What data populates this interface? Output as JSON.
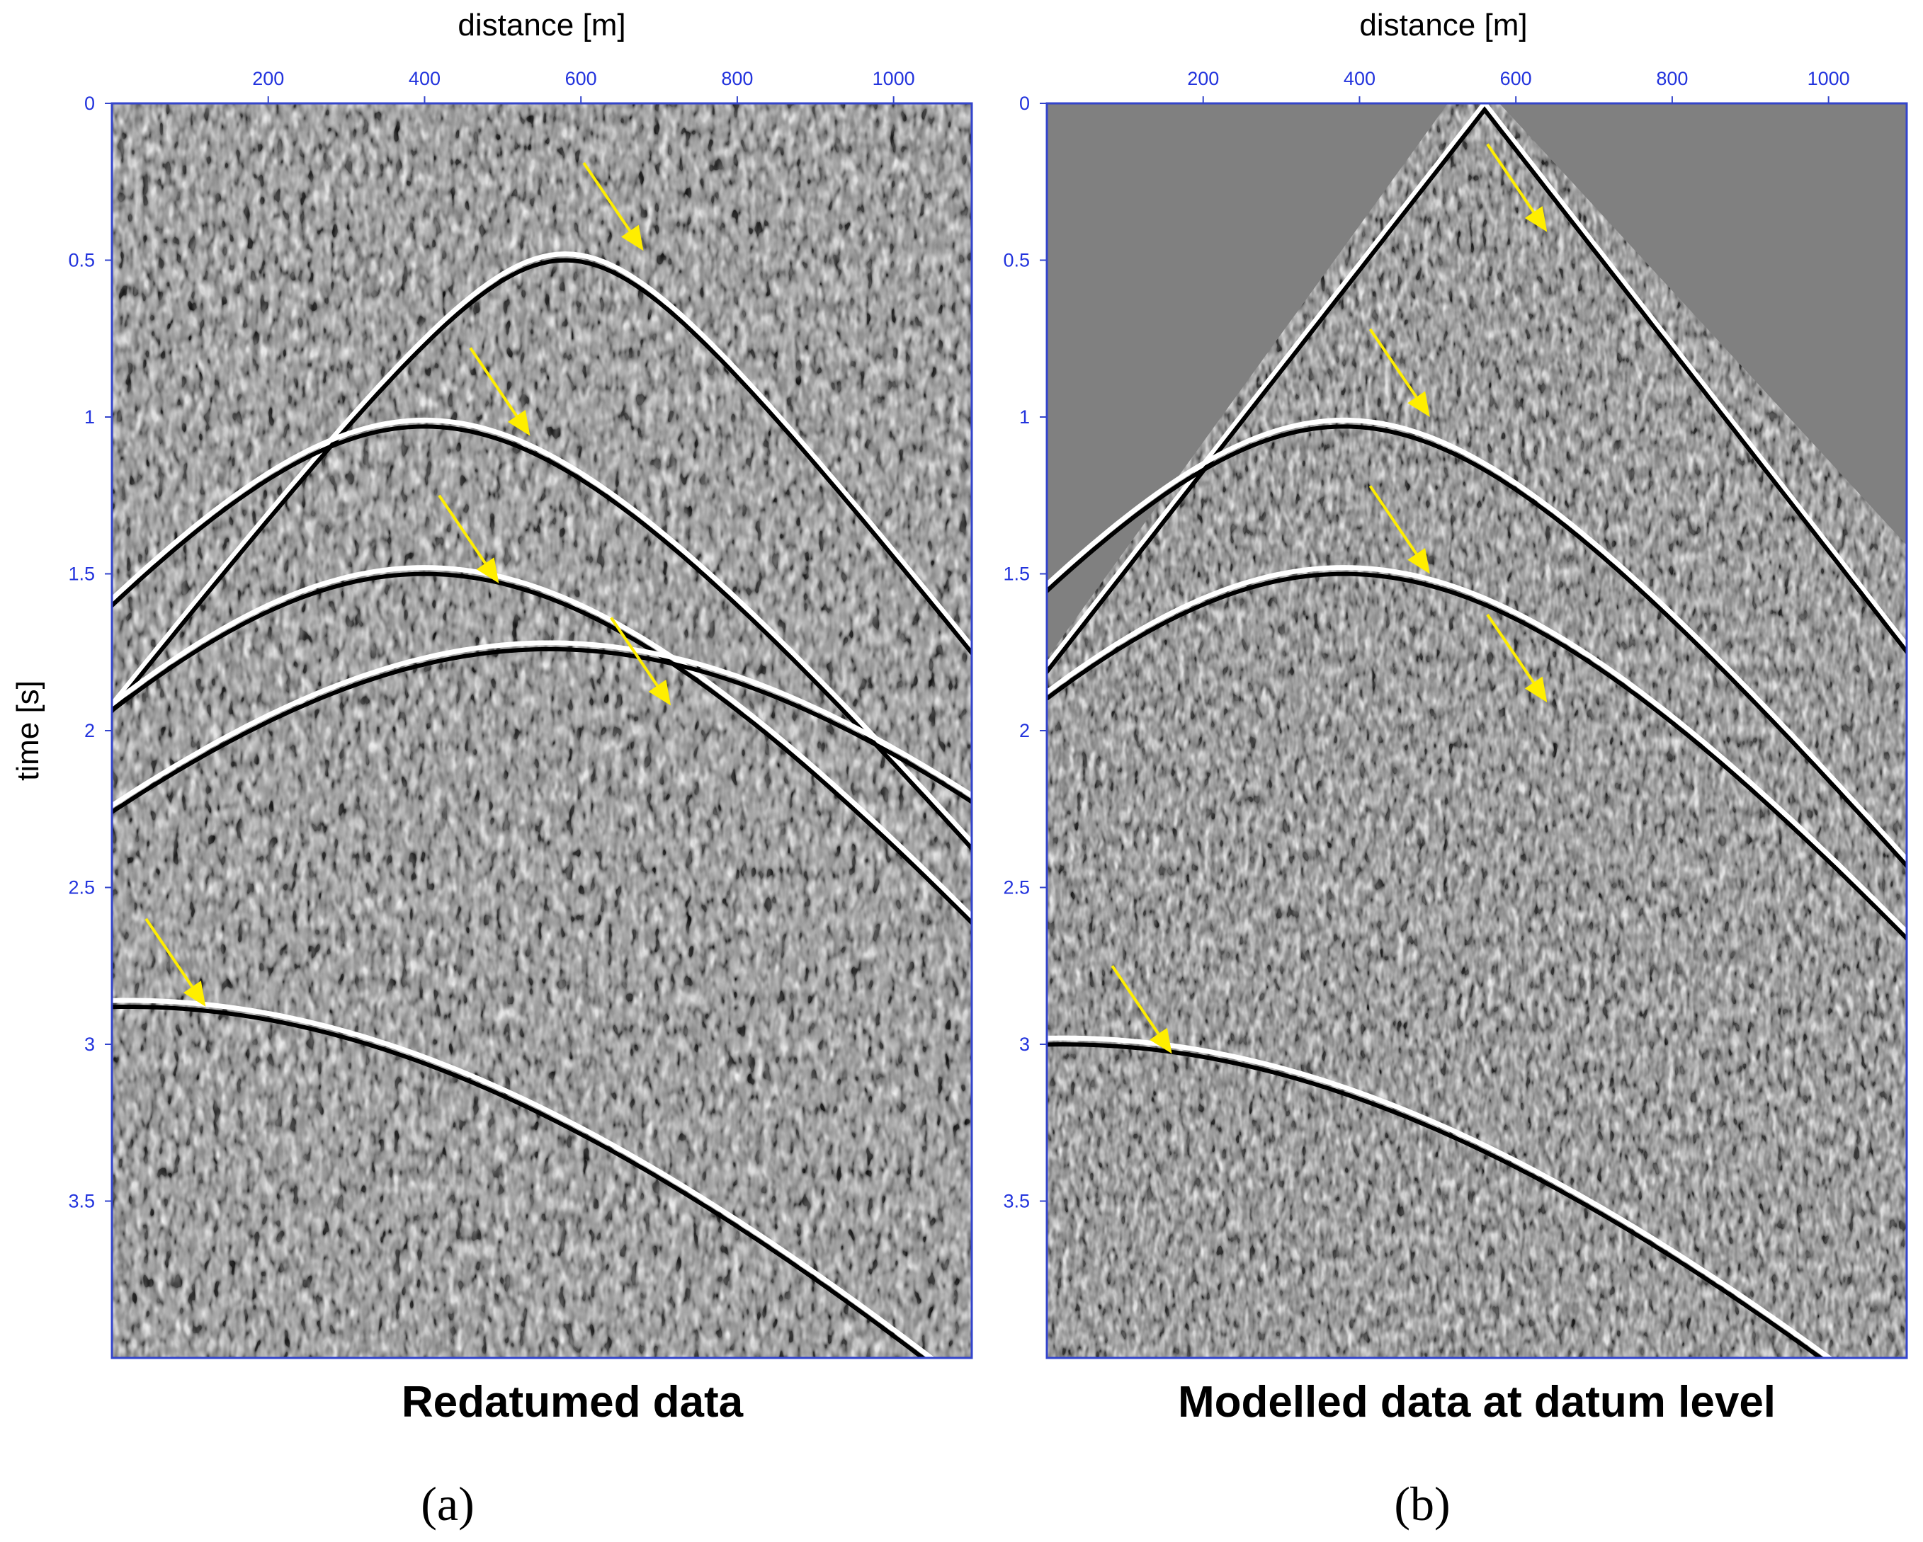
{
  "chart_data": [
    {
      "type": "heatmap",
      "title": "Redatumed data",
      "panel_label": "(a)",
      "xlabel": "distance [m]",
      "ylabel": "time [s]",
      "xlim": [
        0,
        1100
      ],
      "ylim": [
        0,
        4
      ],
      "x_ticks": [
        200,
        400,
        600,
        800,
        1000
      ],
      "y_ticks": [
        0,
        0.5,
        1,
        1.5,
        2,
        2.5,
        3,
        3.5
      ],
      "y_tick_labels": [
        "0",
        "0.5",
        "1",
        "1.5",
        "2",
        "2.5",
        "3",
        "3.5"
      ],
      "background": "seismic-wiggle-texture",
      "colormap": "grayscale",
      "arrow_color": "#ffee00",
      "arrows": [
        {
          "x": 680,
          "t": 0.47
        },
        {
          "x": 535,
          "t": 1.06
        },
        {
          "x": 495,
          "t": 1.53
        },
        {
          "x": 715,
          "t": 1.92
        },
        {
          "x": 120,
          "t": 2.88
        }
      ],
      "events": [
        {
          "apex_x": 580,
          "apex_t": 0.48,
          "curvature": 2.0
        },
        {
          "apex_x": 400,
          "apex_t": 1.01,
          "curvature": 1.9
        },
        {
          "apex_x": 400,
          "apex_t": 1.48,
          "curvature": 1.9
        },
        {
          "apex_x": 560,
          "apex_t": 1.72,
          "curvature": 1.6
        },
        {
          "apex_x": 20,
          "apex_t": 2.86,
          "curvature": 1.7
        }
      ]
    },
    {
      "type": "heatmap",
      "title": "Modelled data at datum level",
      "panel_label": "(b)",
      "xlabel": "distance [m]",
      "ylabel": "",
      "xlim": [
        0,
        1100
      ],
      "ylim": [
        0,
        4
      ],
      "x_ticks": [
        200,
        400,
        600,
        800,
        1000
      ],
      "y_ticks": [
        0,
        0.5,
        1,
        1.5,
        2,
        2.5,
        3,
        3.5
      ],
      "y_tick_labels": [
        "0",
        "0.5",
        "1",
        "1.5",
        "2",
        "2.5",
        "3",
        "3.5"
      ],
      "background": "gray-above-first-arrival",
      "colormap": "grayscale",
      "arrow_color": "#ffee00",
      "arrows": [
        {
          "x": 640,
          "t": 0.41
        },
        {
          "x": 490,
          "t": 1.0
        },
        {
          "x": 490,
          "t": 1.5
        },
        {
          "x": 640,
          "t": 1.91
        },
        {
          "x": 160,
          "t": 3.03
        }
      ],
      "events": [
        {
          "apex_x": 560,
          "apex_t": 0.0,
          "curvature": 0
        },
        {
          "apex_x": 380,
          "apex_t": 1.01,
          "curvature": 1.9
        },
        {
          "apex_x": 380,
          "apex_t": 1.48,
          "curvature": 1.9
        },
        {
          "apex_x": 20,
          "apex_t": 2.98,
          "curvature": 1.7
        }
      ]
    }
  ]
}
